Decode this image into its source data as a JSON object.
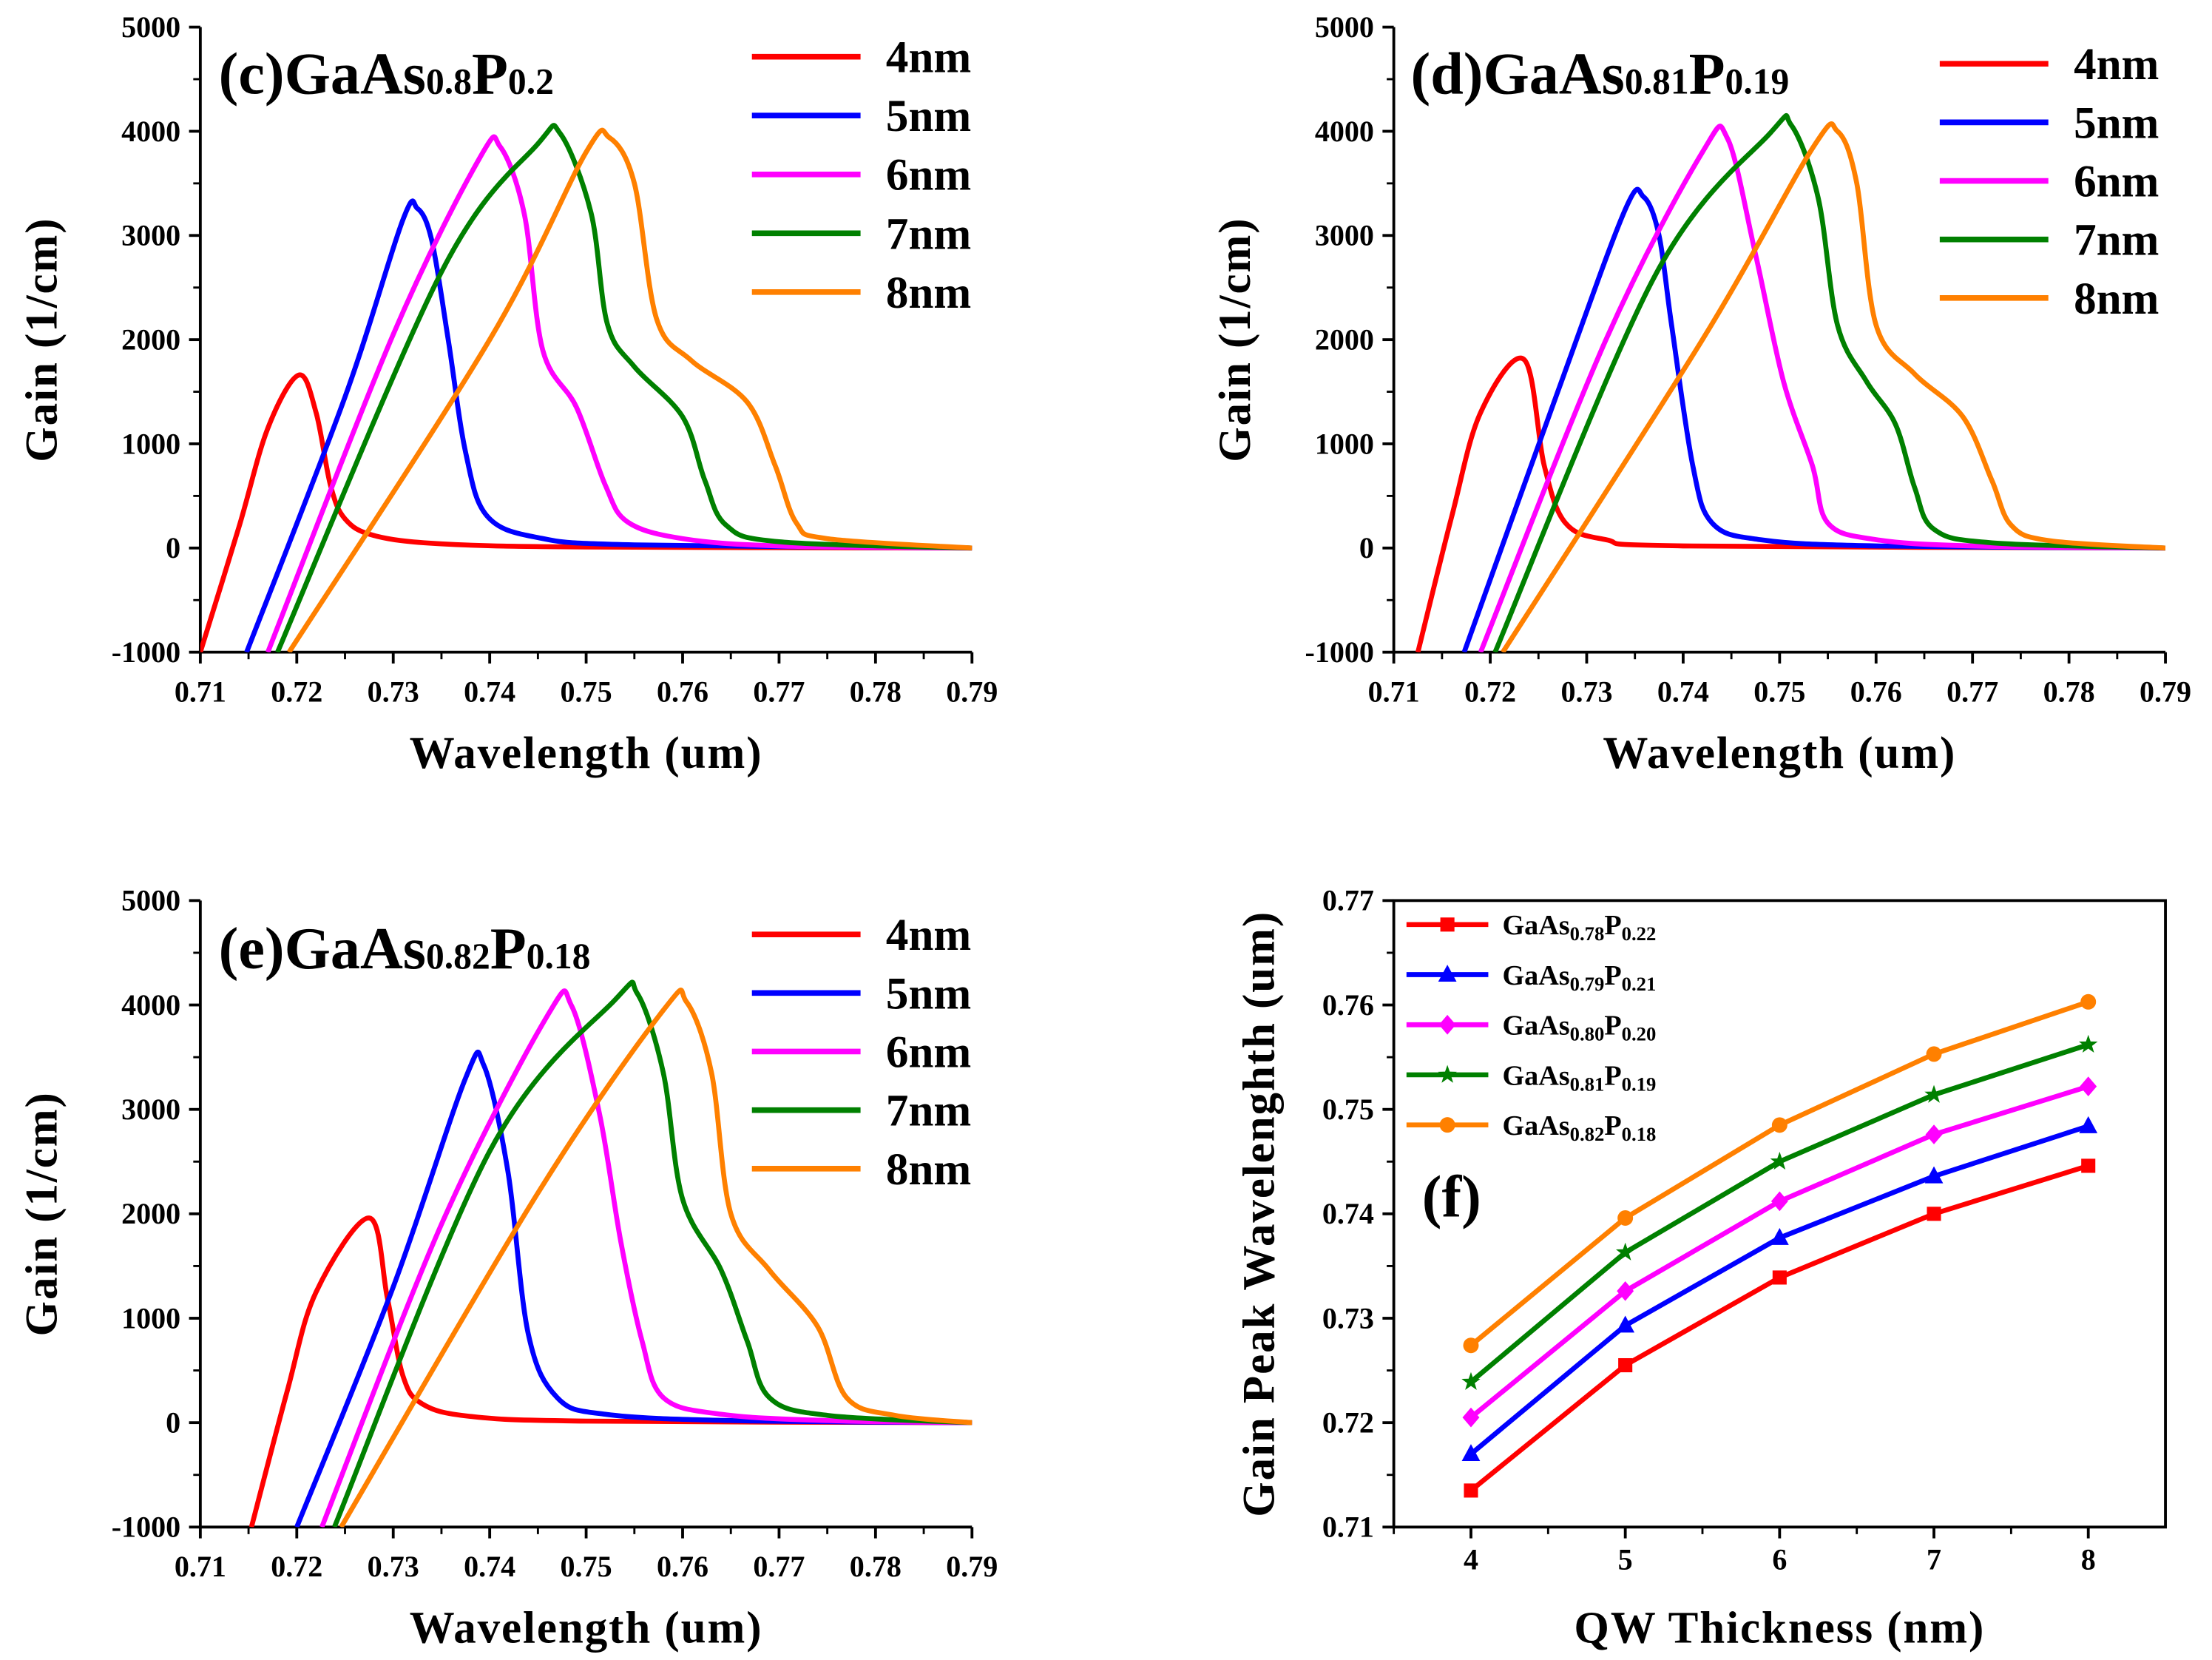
{
  "chart_data": [
    {
      "type": "line",
      "panel": "(c)",
      "title": {
        "label": "(c)",
        "base1": "GaAs",
        "sub1": "0.8",
        "base2": "P",
        "sub2": "0.2"
      },
      "xlabel": "Wavelength (um)",
      "ylabel": "Gain (1/cm)",
      "xlim": [
        0.71,
        0.79
      ],
      "ylim": [
        -1000,
        5000
      ],
      "xticks": [
        "0.71",
        "0.72",
        "0.73",
        "0.74",
        "0.75",
        "0.76",
        "0.77",
        "0.78",
        "0.79"
      ],
      "yticks": [
        "-1000",
        "0",
        "1000",
        "2000",
        "3000",
        "4000",
        "5000"
      ],
      "legend": "top-right",
      "series": [
        {
          "name": "4nm",
          "color": "#ff0000",
          "points": [
            [
              0.71,
              -1000
            ],
            [
              0.714,
              200
            ],
            [
              0.717,
              1150
            ],
            [
              0.7202,
              1660
            ],
            [
              0.722,
              1300
            ],
            [
              0.7235,
              600
            ],
            [
              0.725,
              280
            ],
            [
              0.728,
              120
            ],
            [
              0.735,
              40
            ],
            [
              0.75,
              10
            ],
            [
              0.79,
              0
            ]
          ]
        },
        {
          "name": "5nm",
          "color": "#0000ff",
          "points": [
            [
              0.7148,
              -1000
            ],
            [
              0.725,
              1450
            ],
            [
              0.731,
              3150
            ],
            [
              0.7325,
              3260
            ],
            [
              0.734,
              2950
            ],
            [
              0.7357,
              2000
            ],
            [
              0.7375,
              920
            ],
            [
              0.7397,
              310
            ],
            [
              0.745,
              100
            ],
            [
              0.755,
              30
            ],
            [
              0.79,
              0
            ]
          ]
        },
        {
          "name": "6nm",
          "color": "#ff00ff",
          "points": [
            [
              0.717,
              -1000
            ],
            [
              0.73,
              2050
            ],
            [
              0.739,
              3750
            ],
            [
              0.7411,
              3850
            ],
            [
              0.7436,
              3200
            ],
            [
              0.7455,
              1900
            ],
            [
              0.749,
              1350
            ],
            [
              0.752,
              600
            ],
            [
              0.7543,
              250
            ],
            [
              0.76,
              90
            ],
            [
              0.77,
              20
            ],
            [
              0.79,
              0
            ]
          ]
        },
        {
          "name": "7nm",
          "color": "#008000",
          "points": [
            [
              0.718,
              -1000
            ],
            [
              0.735,
              2650
            ],
            [
              0.745,
              3880
            ],
            [
              0.7473,
              3980
            ],
            [
              0.7505,
              3220
            ],
            [
              0.7522,
              2150
            ],
            [
              0.755,
              1740
            ],
            [
              0.76,
              1260
            ],
            [
              0.7623,
              650
            ],
            [
              0.7645,
              220
            ],
            [
              0.77,
              60
            ],
            [
              0.79,
              0
            ]
          ]
        },
        {
          "name": "8nm",
          "color": "#ff8000",
          "points": [
            [
              0.7192,
              -1000
            ],
            [
              0.74,
              2000
            ],
            [
              0.75,
              3800
            ],
            [
              0.7524,
              3940
            ],
            [
              0.755,
              3500
            ],
            [
              0.7573,
              2200
            ],
            [
              0.7609,
              1800
            ],
            [
              0.7667,
              1400
            ],
            [
              0.7696,
              790
            ],
            [
              0.7718,
              240
            ],
            [
              0.775,
              90
            ],
            [
              0.79,
              0
            ]
          ]
        }
      ]
    },
    {
      "type": "line",
      "panel": "(d)",
      "title": {
        "label": "(d)",
        "base1": "GaAs",
        "sub1": "0.81",
        "base2": "P",
        "sub2": "0.19"
      },
      "xlabel": "Wavelength (um)",
      "ylabel": "Gain (1/cm)",
      "xlim": [
        0.71,
        0.79
      ],
      "ylim": [
        -1000,
        5000
      ],
      "xticks": [
        "0.71",
        "0.72",
        "0.73",
        "0.74",
        "0.75",
        "0.76",
        "0.77",
        "0.78",
        "0.79"
      ],
      "yticks": [
        "-1000",
        "0",
        "1000",
        "2000",
        "3000",
        "4000",
        "5000"
      ],
      "legend": "top-right",
      "series": [
        {
          "name": "4nm",
          "color": "#ff0000",
          "points": [
            [
              0.7125,
              -1000
            ],
            [
              0.716,
              300
            ],
            [
              0.719,
              1300
            ],
            [
              0.7235,
              1810
            ],
            [
              0.7256,
              790
            ],
            [
              0.7278,
              240
            ],
            [
              0.732,
              80
            ],
            [
              0.74,
              20
            ],
            [
              0.79,
              0
            ]
          ]
        },
        {
          "name": "5nm",
          "color": "#0000ff",
          "points": [
            [
              0.7173,
              -1000
            ],
            [
              0.727,
              1500
            ],
            [
              0.734,
              3250
            ],
            [
              0.7359,
              3370
            ],
            [
              0.7375,
              3000
            ],
            [
              0.7388,
              2140
            ],
            [
              0.741,
              790
            ],
            [
              0.743,
              240
            ],
            [
              0.748,
              80
            ],
            [
              0.76,
              20
            ],
            [
              0.79,
              0
            ]
          ]
        },
        {
          "name": "6nm",
          "color": "#ff00ff",
          "points": [
            [
              0.719,
              -1000
            ],
            [
              0.732,
              2000
            ],
            [
              0.742,
              3800
            ],
            [
              0.7446,
              3930
            ],
            [
              0.7475,
              2820
            ],
            [
              0.7504,
              1600
            ],
            [
              0.7534,
              790
            ],
            [
              0.755,
              240
            ],
            [
              0.76,
              80
            ],
            [
              0.77,
              20
            ],
            [
              0.79,
              0
            ]
          ]
        },
        {
          "name": "7nm",
          "color": "#008000",
          "points": [
            [
              0.7205,
              -1000
            ],
            [
              0.737,
              2600
            ],
            [
              0.749,
              3980
            ],
            [
              0.7512,
              4060
            ],
            [
              0.754,
              3360
            ],
            [
              0.756,
              2140
            ],
            [
              0.759,
              1600
            ],
            [
              0.762,
              1190
            ],
            [
              0.764,
              580
            ],
            [
              0.766,
              180
            ],
            [
              0.772,
              50
            ],
            [
              0.79,
              0
            ]
          ]
        },
        {
          "name": "8nm",
          "color": "#ff8000",
          "points": [
            [
              0.7213,
              -1000
            ],
            [
              0.742,
              2000
            ],
            [
              0.7535,
              3850
            ],
            [
              0.756,
              4000
            ],
            [
              0.758,
              3500
            ],
            [
              0.76,
              2140
            ],
            [
              0.764,
              1670
            ],
            [
              0.769,
              1260
            ],
            [
              0.772,
              650
            ],
            [
              0.774,
              220
            ],
            [
              0.778,
              70
            ],
            [
              0.79,
              0
            ]
          ]
        }
      ]
    },
    {
      "type": "line",
      "panel": "(e)",
      "title": {
        "label": "(e)",
        "base1": "GaAs",
        "sub1": "0.82",
        "base2": "P",
        "sub2": "0.18"
      },
      "xlabel": "Wavelength (um)",
      "ylabel": "Gain (1/cm)",
      "xlim": [
        0.71,
        0.79
      ],
      "ylim": [
        -1000,
        5000
      ],
      "xticks": [
        "0.71",
        "0.72",
        "0.73",
        "0.74",
        "0.75",
        "0.76",
        "0.77",
        "0.78",
        "0.79"
      ],
      "yticks": [
        "-1000",
        "0",
        "1000",
        "2000",
        "3000",
        "4000",
        "5000"
      ],
      "legend": "top-right",
      "series": [
        {
          "name": "4nm",
          "color": "#ff0000",
          "points": [
            [
              0.7153,
              -1000
            ],
            [
              0.719,
              300
            ],
            [
              0.722,
              1250
            ],
            [
              0.7275,
              1960
            ],
            [
              0.7294,
              1190
            ],
            [
              0.731,
              450
            ],
            [
              0.733,
              180
            ],
            [
              0.738,
              60
            ],
            [
              0.75,
              15
            ],
            [
              0.79,
              0
            ]
          ]
        },
        {
          "name": "5nm",
          "color": "#0000ff",
          "points": [
            [
              0.72,
              -1000
            ],
            [
              0.73,
              1300
            ],
            [
              0.7375,
              3300
            ],
            [
              0.7394,
              3420
            ],
            [
              0.7419,
              2400
            ],
            [
              0.744,
              850
            ],
            [
              0.747,
              240
            ],
            [
              0.752,
              80
            ],
            [
              0.765,
              20
            ],
            [
              0.79,
              0
            ]
          ]
        },
        {
          "name": "6nm",
          "color": "#ff00ff",
          "points": [
            [
              0.7226,
              -1000
            ],
            [
              0.735,
              1900
            ],
            [
              0.746,
              3900
            ],
            [
              0.7485,
              3990
            ],
            [
              0.7514,
              2950
            ],
            [
              0.7536,
              1730
            ],
            [
              0.7558,
              780
            ],
            [
              0.758,
              240
            ],
            [
              0.764,
              80
            ],
            [
              0.775,
              20
            ],
            [
              0.79,
              0
            ]
          ]
        },
        {
          "name": "7nm",
          "color": "#008000",
          "points": [
            [
              0.7239,
              -1000
            ],
            [
              0.74,
              2600
            ],
            [
              0.753,
              4050
            ],
            [
              0.7553,
              4110
            ],
            [
              0.758,
              3350
            ],
            [
              0.76,
              2140
            ],
            [
              0.764,
              1460
            ],
            [
              0.7667,
              780
            ],
            [
              0.769,
              240
            ],
            [
              0.775,
              70
            ],
            [
              0.79,
              0
            ]
          ]
        },
        {
          "name": "8nm",
          "color": "#ff8000",
          "points": [
            [
              0.7246,
              -1000
            ],
            [
              0.745,
              2200
            ],
            [
              0.758,
              3950
            ],
            [
              0.7604,
              4030
            ],
            [
              0.763,
              3350
            ],
            [
              0.765,
              2000
            ],
            [
              0.769,
              1460
            ],
            [
              0.774,
              920
            ],
            [
              0.777,
              240
            ],
            [
              0.782,
              70
            ],
            [
              0.79,
              0
            ]
          ]
        }
      ]
    },
    {
      "type": "line",
      "panel": "(f)",
      "title": {
        "label": "(f)"
      },
      "xlabel": "QW Thickness (nm)",
      "ylabel": "Gain Peak Wavelenghth (um)",
      "xlim": [
        3.5,
        8.5
      ],
      "ylim": [
        0.71,
        0.77
      ],
      "xticks": [
        "4",
        "5",
        "6",
        "7",
        "8"
      ],
      "yticks": [
        "0.71",
        "0.72",
        "0.73",
        "0.74",
        "0.75",
        "0.76",
        "0.77"
      ],
      "legend": "top-left",
      "x": [
        4,
        5,
        6,
        7,
        8
      ],
      "series": [
        {
          "name": "GaAs0.78P0.22",
          "base1": "GaAs",
          "sub1": "0.78",
          "base2": "P",
          "sub2": "0.22",
          "color": "#ff0000",
          "marker": "square",
          "values": [
            0.7135,
            0.7255,
            0.7339,
            0.74,
            0.7446
          ]
        },
        {
          "name": "GaAs0.79P0.21",
          "base1": "GaAs",
          "sub1": "0.79",
          "base2": "P",
          "sub2": "0.21",
          "color": "#0000ff",
          "marker": "triangle",
          "values": [
            0.717,
            0.7293,
            0.7377,
            0.7436,
            0.7484
          ]
        },
        {
          "name": "GaAs0.80P0.20",
          "base1": "GaAs",
          "sub1": "0.80",
          "base2": "P",
          "sub2": "0.20",
          "color": "#ff00ff",
          "marker": "diamond",
          "values": [
            0.7205,
            0.7326,
            0.7412,
            0.7476,
            0.7522
          ]
        },
        {
          "name": "GaAs0.81P0.19",
          "base1": "GaAs",
          "sub1": "0.81",
          "base2": "P",
          "sub2": "0.19",
          "color": "#008000",
          "marker": "star",
          "values": [
            0.7239,
            0.7363,
            0.745,
            0.7514,
            0.7562
          ]
        },
        {
          "name": "GaAs0.82P0.18",
          "base1": "GaAs",
          "sub1": "0.82",
          "base2": "P",
          "sub2": "0.18",
          "color": "#ff8000",
          "marker": "circle",
          "values": [
            0.7274,
            0.7396,
            0.7485,
            0.7553,
            0.7603
          ]
        }
      ]
    }
  ]
}
